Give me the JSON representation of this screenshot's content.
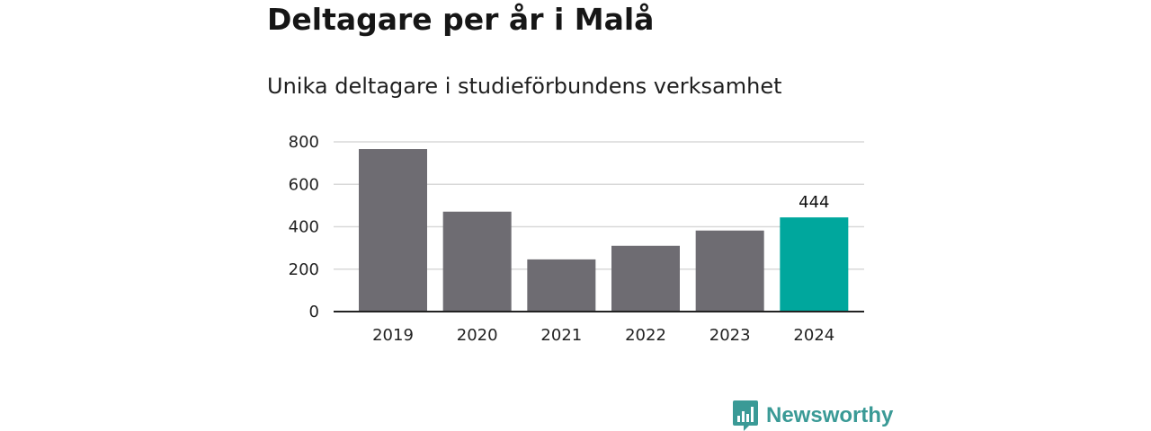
{
  "header": {
    "title": "Deltagare per år i Malå",
    "subtitle": "Unika deltagare i studieförbundens verksamhet"
  },
  "chart_data": {
    "type": "bar",
    "title": "Deltagare per år i Malå",
    "subtitle": "Unika deltagare i studieförbundens verksamhet",
    "xlabel": "",
    "ylabel": "",
    "categories": [
      "2019",
      "2020",
      "2021",
      "2022",
      "2023",
      "2024"
    ],
    "values": [
      766,
      471,
      246,
      310,
      382,
      444
    ],
    "ylim": [
      0,
      800
    ],
    "yticks": [
      0,
      200,
      400,
      600,
      800
    ],
    "grid": true,
    "highlight_index": 5,
    "data_labels": [
      {
        "index": 5,
        "text": "444"
      }
    ],
    "colors": {
      "bar": "#6e6c72",
      "highlight": "#00a79d",
      "grid": "#d9d9d9",
      "axis": "#222222"
    }
  },
  "brand": {
    "name": "Newsworthy",
    "icon": "bar-chart-speech-icon",
    "color": "#3a9a96"
  }
}
